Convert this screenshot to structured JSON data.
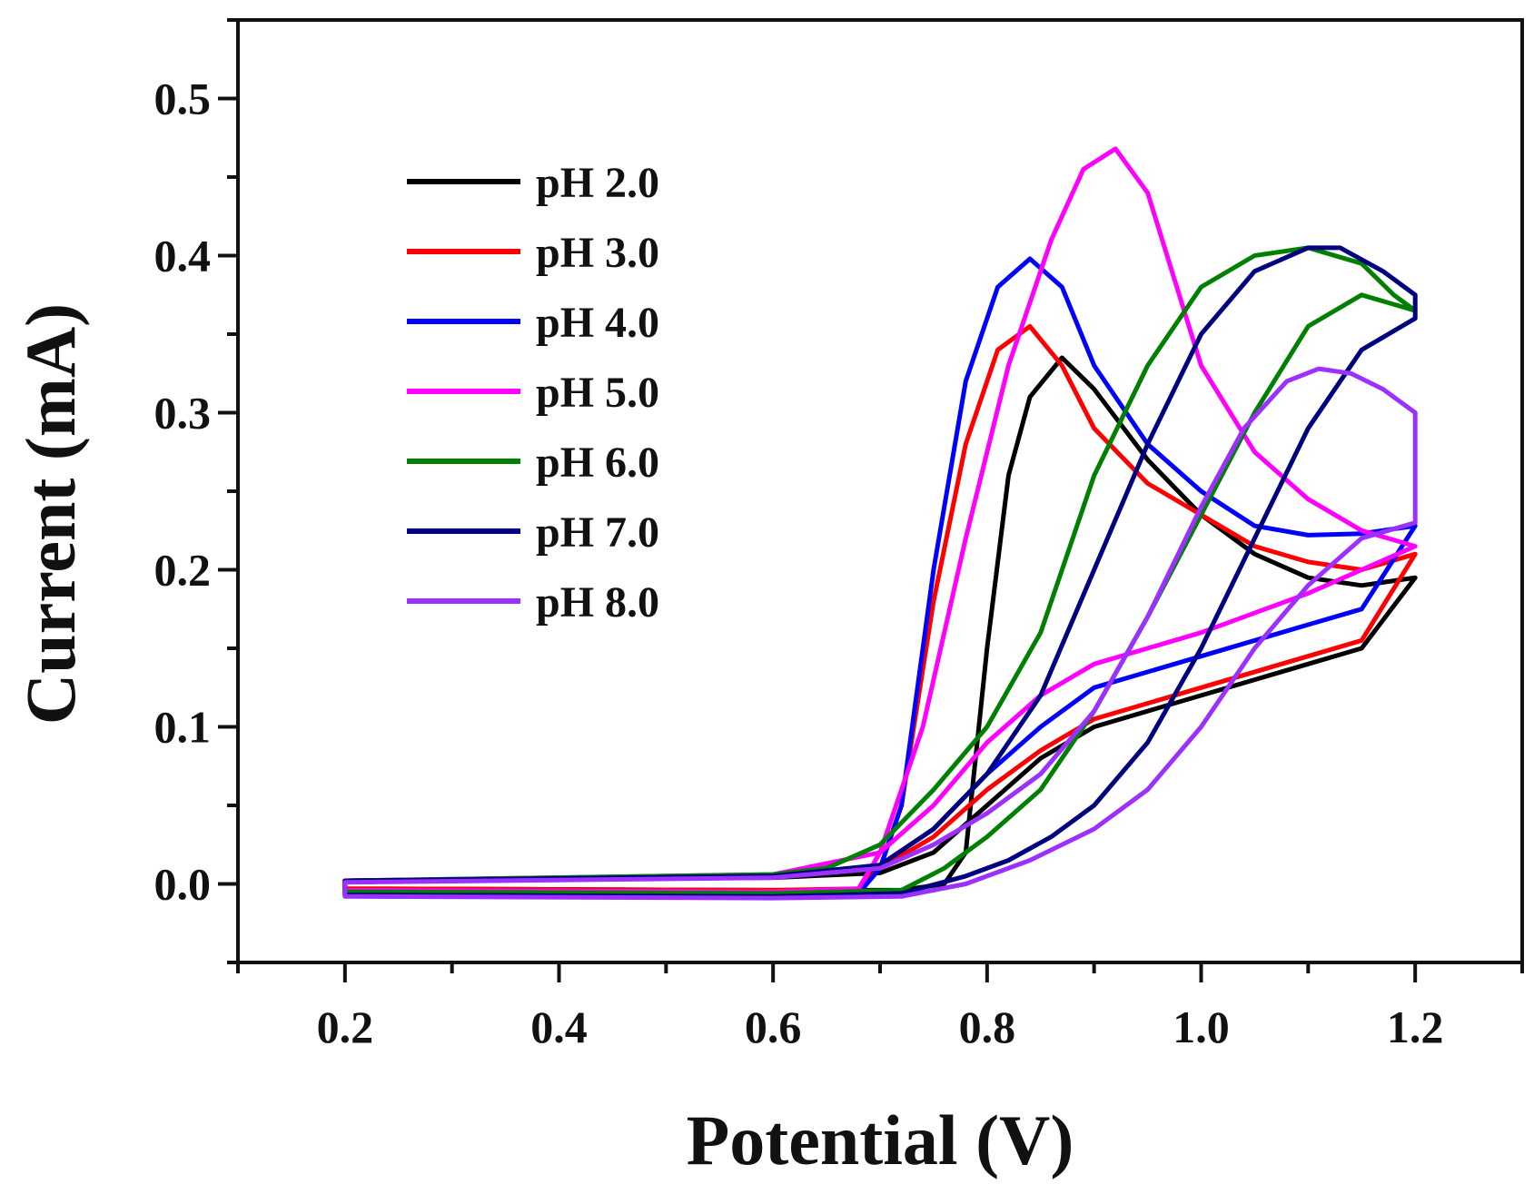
{
  "chart_data": {
    "type": "line",
    "xlabel": "Potential (V)",
    "ylabel": "Current (mA)",
    "xlim": [
      0.1,
      1.3
    ],
    "ylim": [
      -0.05,
      0.55
    ],
    "xticks": [
      0.2,
      0.4,
      0.6,
      0.8,
      1.0,
      1.2
    ],
    "xtick_labels": [
      "0.2",
      "0.4",
      "0.6",
      "0.8",
      "1.0",
      "1.2"
    ],
    "yticks": [
      0.0,
      0.1,
      0.2,
      0.3,
      0.4,
      0.5
    ],
    "ytick_labels": [
      "0.0",
      "0.1",
      "0.2",
      "0.3",
      "0.4",
      "0.5"
    ],
    "legend_position": "top-left",
    "series": [
      {
        "name": "pH 2.0",
        "color": "#000000",
        "forward": [
          [
            0.2,
            -0.003
          ],
          [
            0.6,
            -0.004
          ],
          [
            0.72,
            -0.004
          ],
          [
            0.76,
            0.0
          ],
          [
            0.78,
            0.02
          ],
          [
            0.8,
            0.15
          ],
          [
            0.82,
            0.26
          ],
          [
            0.84,
            0.31
          ],
          [
            0.87,
            0.335
          ],
          [
            0.9,
            0.315
          ],
          [
            0.95,
            0.27
          ],
          [
            1.0,
            0.235
          ],
          [
            1.05,
            0.21
          ],
          [
            1.1,
            0.195
          ],
          [
            1.15,
            0.19
          ],
          [
            1.2,
            0.195
          ]
        ],
        "reverse": [
          [
            1.2,
            0.195
          ],
          [
            1.15,
            0.15
          ],
          [
            1.1,
            0.14
          ],
          [
            1.0,
            0.12
          ],
          [
            0.9,
            0.1
          ],
          [
            0.85,
            0.08
          ],
          [
            0.8,
            0.05
          ],
          [
            0.75,
            0.02
          ],
          [
            0.7,
            0.007
          ],
          [
            0.6,
            0.004
          ],
          [
            0.2,
            0.002
          ]
        ]
      },
      {
        "name": "pH 3.0",
        "color": "#ff0000",
        "forward": [
          [
            0.2,
            -0.003
          ],
          [
            0.6,
            -0.004
          ],
          [
            0.68,
            -0.003
          ],
          [
            0.7,
            0.01
          ],
          [
            0.72,
            0.05
          ],
          [
            0.75,
            0.18
          ],
          [
            0.78,
            0.28
          ],
          [
            0.81,
            0.34
          ],
          [
            0.84,
            0.355
          ],
          [
            0.87,
            0.33
          ],
          [
            0.9,
            0.29
          ],
          [
            0.95,
            0.255
          ],
          [
            1.0,
            0.235
          ],
          [
            1.05,
            0.215
          ],
          [
            1.1,
            0.205
          ],
          [
            1.15,
            0.2
          ],
          [
            1.2,
            0.21
          ]
        ],
        "reverse": [
          [
            1.2,
            0.21
          ],
          [
            1.15,
            0.155
          ],
          [
            1.1,
            0.145
          ],
          [
            1.0,
            0.125
          ],
          [
            0.9,
            0.105
          ],
          [
            0.85,
            0.085
          ],
          [
            0.8,
            0.06
          ],
          [
            0.75,
            0.03
          ],
          [
            0.7,
            0.01
          ],
          [
            0.6,
            0.005
          ],
          [
            0.2,
            0.002
          ]
        ]
      },
      {
        "name": "pH 4.0",
        "color": "#0000ff",
        "forward": [
          [
            0.2,
            -0.006
          ],
          [
            0.6,
            -0.007
          ],
          [
            0.68,
            -0.006
          ],
          [
            0.7,
            0.01
          ],
          [
            0.72,
            0.05
          ],
          [
            0.75,
            0.2
          ],
          [
            0.78,
            0.32
          ],
          [
            0.81,
            0.38
          ],
          [
            0.84,
            0.398
          ],
          [
            0.87,
            0.38
          ],
          [
            0.9,
            0.33
          ],
          [
            0.95,
            0.28
          ],
          [
            1.0,
            0.25
          ],
          [
            1.05,
            0.228
          ],
          [
            1.1,
            0.222
          ],
          [
            1.15,
            0.223
          ],
          [
            1.2,
            0.228
          ]
        ],
        "reverse": [
          [
            1.2,
            0.228
          ],
          [
            1.15,
            0.175
          ],
          [
            1.1,
            0.165
          ],
          [
            1.0,
            0.145
          ],
          [
            0.9,
            0.125
          ],
          [
            0.85,
            0.1
          ],
          [
            0.8,
            0.07
          ],
          [
            0.75,
            0.035
          ],
          [
            0.7,
            0.012
          ],
          [
            0.6,
            0.005
          ],
          [
            0.2,
            0.002
          ]
        ]
      },
      {
        "name": "pH 5.0",
        "color": "#ff00ff",
        "forward": [
          [
            0.2,
            -0.004
          ],
          [
            0.6,
            -0.005
          ],
          [
            0.68,
            -0.003
          ],
          [
            0.7,
            0.02
          ],
          [
            0.74,
            0.1
          ],
          [
            0.78,
            0.22
          ],
          [
            0.82,
            0.33
          ],
          [
            0.86,
            0.41
          ],
          [
            0.89,
            0.455
          ],
          [
            0.92,
            0.468
          ],
          [
            0.95,
            0.44
          ],
          [
            1.0,
            0.33
          ],
          [
            1.05,
            0.275
          ],
          [
            1.1,
            0.245
          ],
          [
            1.15,
            0.225
          ],
          [
            1.2,
            0.215
          ]
        ],
        "reverse": [
          [
            1.2,
            0.215
          ],
          [
            1.15,
            0.2
          ],
          [
            1.1,
            0.185
          ],
          [
            1.0,
            0.16
          ],
          [
            0.9,
            0.14
          ],
          [
            0.85,
            0.12
          ],
          [
            0.8,
            0.09
          ],
          [
            0.75,
            0.05
          ],
          [
            0.7,
            0.02
          ],
          [
            0.6,
            0.006
          ],
          [
            0.2,
            0.002
          ]
        ]
      },
      {
        "name": "pH 6.0",
        "color": "#008000",
        "forward": [
          [
            0.2,
            -0.005
          ],
          [
            0.6,
            -0.006
          ],
          [
            0.72,
            -0.004
          ],
          [
            0.76,
            0.01
          ],
          [
            0.8,
            0.03
          ],
          [
            0.85,
            0.06
          ],
          [
            0.9,
            0.11
          ],
          [
            0.95,
            0.17
          ],
          [
            1.0,
            0.235
          ],
          [
            1.05,
            0.3
          ],
          [
            1.1,
            0.355
          ],
          [
            1.15,
            0.375
          ],
          [
            1.2,
            0.365
          ]
        ],
        "reverse": [
          [
            1.2,
            0.365
          ],
          [
            1.18,
            0.375
          ],
          [
            1.15,
            0.395
          ],
          [
            1.1,
            0.405
          ],
          [
            1.05,
            0.4
          ],
          [
            1.0,
            0.38
          ],
          [
            0.95,
            0.33
          ],
          [
            0.9,
            0.26
          ],
          [
            0.85,
            0.16
          ],
          [
            0.8,
            0.1
          ],
          [
            0.75,
            0.06
          ],
          [
            0.7,
            0.025
          ],
          [
            0.65,
            0.01
          ],
          [
            0.6,
            0.006
          ],
          [
            0.2,
            0.002
          ]
        ]
      },
      {
        "name": "pH 7.0",
        "color": "#000080",
        "forward": [
          [
            0.2,
            -0.007
          ],
          [
            0.6,
            -0.008
          ],
          [
            0.72,
            -0.006
          ],
          [
            0.78,
            0.005
          ],
          [
            0.82,
            0.015
          ],
          [
            0.86,
            0.03
          ],
          [
            0.9,
            0.05
          ],
          [
            0.95,
            0.09
          ],
          [
            1.0,
            0.15
          ],
          [
            1.05,
            0.22
          ],
          [
            1.1,
            0.29
          ],
          [
            1.15,
            0.34
          ],
          [
            1.2,
            0.36
          ]
        ],
        "reverse": [
          [
            1.2,
            0.375
          ],
          [
            1.17,
            0.39
          ],
          [
            1.13,
            0.405
          ],
          [
            1.1,
            0.405
          ],
          [
            1.05,
            0.39
          ],
          [
            1.0,
            0.35
          ],
          [
            0.95,
            0.28
          ],
          [
            0.9,
            0.2
          ],
          [
            0.85,
            0.12
          ],
          [
            0.8,
            0.07
          ],
          [
            0.75,
            0.035
          ],
          [
            0.7,
            0.012
          ],
          [
            0.6,
            0.005
          ],
          [
            0.2,
            0.002
          ]
        ]
      },
      {
        "name": "pH 8.0",
        "color": "#9b30ff",
        "forward": [
          [
            0.2,
            -0.008
          ],
          [
            0.6,
            -0.009
          ],
          [
            0.72,
            -0.008
          ],
          [
            0.78,
            0.0
          ],
          [
            0.84,
            0.015
          ],
          [
            0.9,
            0.035
          ],
          [
            0.95,
            0.06
          ],
          [
            1.0,
            0.1
          ],
          [
            1.05,
            0.15
          ],
          [
            1.1,
            0.19
          ],
          [
            1.15,
            0.22
          ],
          [
            1.2,
            0.23
          ]
        ],
        "reverse": [
          [
            1.2,
            0.3
          ],
          [
            1.17,
            0.315
          ],
          [
            1.14,
            0.325
          ],
          [
            1.11,
            0.328
          ],
          [
            1.08,
            0.32
          ],
          [
            1.04,
            0.29
          ],
          [
            1.0,
            0.24
          ],
          [
            0.95,
            0.17
          ],
          [
            0.9,
            0.11
          ],
          [
            0.85,
            0.07
          ],
          [
            0.8,
            0.045
          ],
          [
            0.75,
            0.025
          ],
          [
            0.7,
            0.01
          ],
          [
            0.6,
            0.004
          ],
          [
            0.2,
            0.001
          ]
        ]
      }
    ]
  }
}
